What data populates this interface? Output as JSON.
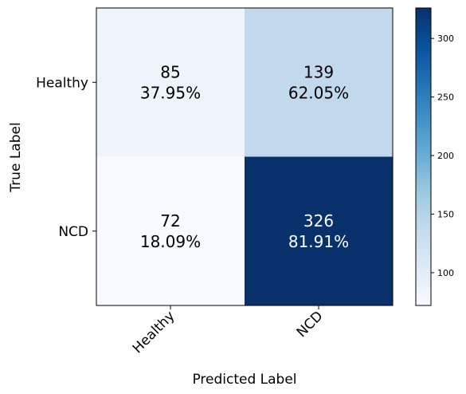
{
  "chart_data": {
    "type": "heatmap",
    "title": "",
    "xlabel": "Predicted Label",
    "ylabel": "True Label",
    "x_categories": [
      "Healthy",
      "NCD"
    ],
    "y_categories": [
      "Healthy",
      "NCD"
    ],
    "values": [
      [
        85,
        139
      ],
      [
        72,
        326
      ]
    ],
    "percent_labels": [
      [
        "37.95%",
        "62.05%"
      ],
      [
        "18.09%",
        "81.91%"
      ]
    ],
    "colormap": "Blues",
    "colormap_stops": [
      "#f7fbff",
      "#deebf7",
      "#c6dbef",
      "#9ecae1",
      "#6baed6",
      "#4292c6",
      "#2171b5",
      "#08519c",
      "#08306b"
    ],
    "vmin": 72,
    "vmax": 326,
    "colorbar_ticks": [
      100,
      150,
      200,
      250,
      300
    ],
    "grid": false
  }
}
